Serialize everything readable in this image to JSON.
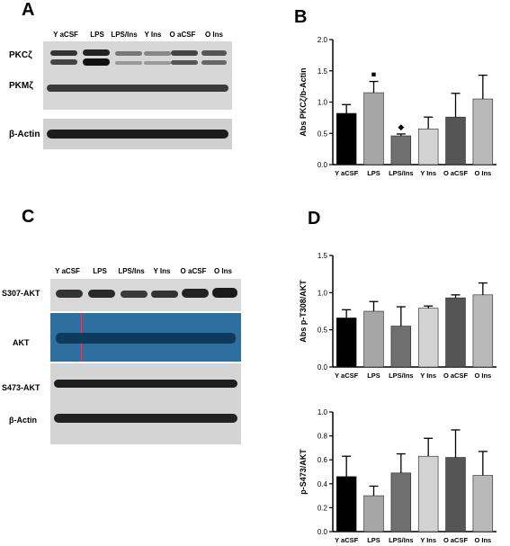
{
  "panels": {
    "A": {
      "letter": "A",
      "lanes": [
        "Y aCSF",
        "LPS",
        "LPS/Ins",
        "Y Ins",
        "O aCSF",
        "O Ins"
      ],
      "rows": [
        "PKCζ",
        "PKMζ",
        "β-Actin"
      ]
    },
    "B": {
      "letter": "B"
    },
    "C": {
      "letter": "C",
      "lanes": [
        "Y aCSF",
        "LPS",
        "LPS/Ins",
        "Y Ins",
        "O aCSF",
        "O Ins"
      ],
      "rows": [
        "S307-AKT",
        "AKT",
        "S473-AKT",
        "β-Actin"
      ]
    },
    "D": {
      "letter": "D"
    }
  },
  "colors": {
    "blot_bg": "#d9d9d9",
    "band_dark": "#1a1a1a",
    "akt_blue": "#2e6f9e",
    "akt_blue_band": "#0e3a5c"
  },
  "chart_data": [
    {
      "type": "bar",
      "ylabel": "Abs PKCζ/b-Actin",
      "categories": [
        "Y aCSF",
        "LPS",
        "LPS/Ins",
        "Y Ins",
        "O aCSF",
        "O Ins"
      ],
      "values": [
        0.82,
        1.15,
        0.46,
        0.57,
        0.76,
        1.05
      ],
      "errors": [
        0.14,
        0.18,
        0.03,
        0.19,
        0.38,
        0.38
      ],
      "colors": [
        "#000000",
        "#a6a6a6",
        "#6f6f6f",
        "#d2d2d2",
        "#555555",
        "#b9b9b9"
      ],
      "ylim": [
        0,
        2.0
      ],
      "yticks": [
        "0.0",
        "0.5",
        "1.0",
        "1.5",
        "2.0"
      ],
      "markers": [
        {
          "category": "LPS",
          "symbol": "■"
        },
        {
          "category": "LPS/Ins",
          "symbol": "◆"
        }
      ]
    },
    {
      "type": "bar",
      "ylabel": "Abs p-T308/AKT",
      "categories": [
        "Y aCSF",
        "LPS",
        "LPS/Ins",
        "Y Ins",
        "O aCSF",
        "O Ins"
      ],
      "values": [
        0.66,
        0.75,
        0.55,
        0.79,
        0.93,
        0.97
      ],
      "errors": [
        0.11,
        0.13,
        0.26,
        0.03,
        0.04,
        0.16
      ],
      "colors": [
        "#000000",
        "#a6a6a6",
        "#6f6f6f",
        "#d2d2d2",
        "#555555",
        "#b9b9b9"
      ],
      "ylim": [
        0,
        1.5
      ],
      "yticks": [
        "0.0",
        "0.5",
        "1.0",
        "1.5"
      ],
      "markers": []
    },
    {
      "type": "bar",
      "ylabel": "p-S473/AKT",
      "categories": [
        "Y aCSF",
        "LPS",
        "LPS/Ins",
        "Y Ins",
        "O aCSF",
        "O Ins"
      ],
      "values": [
        0.46,
        0.3,
        0.49,
        0.63,
        0.62,
        0.47
      ],
      "errors": [
        0.17,
        0.08,
        0.16,
        0.15,
        0.23,
        0.2
      ],
      "colors": [
        "#000000",
        "#a6a6a6",
        "#6f6f6f",
        "#d2d2d2",
        "#555555",
        "#b9b9b9"
      ],
      "ylim": [
        0,
        1.0
      ],
      "yticks": [
        "0.0",
        "0.2",
        "0.4",
        "0.6",
        "0.8",
        "1.0"
      ],
      "markers": []
    }
  ]
}
